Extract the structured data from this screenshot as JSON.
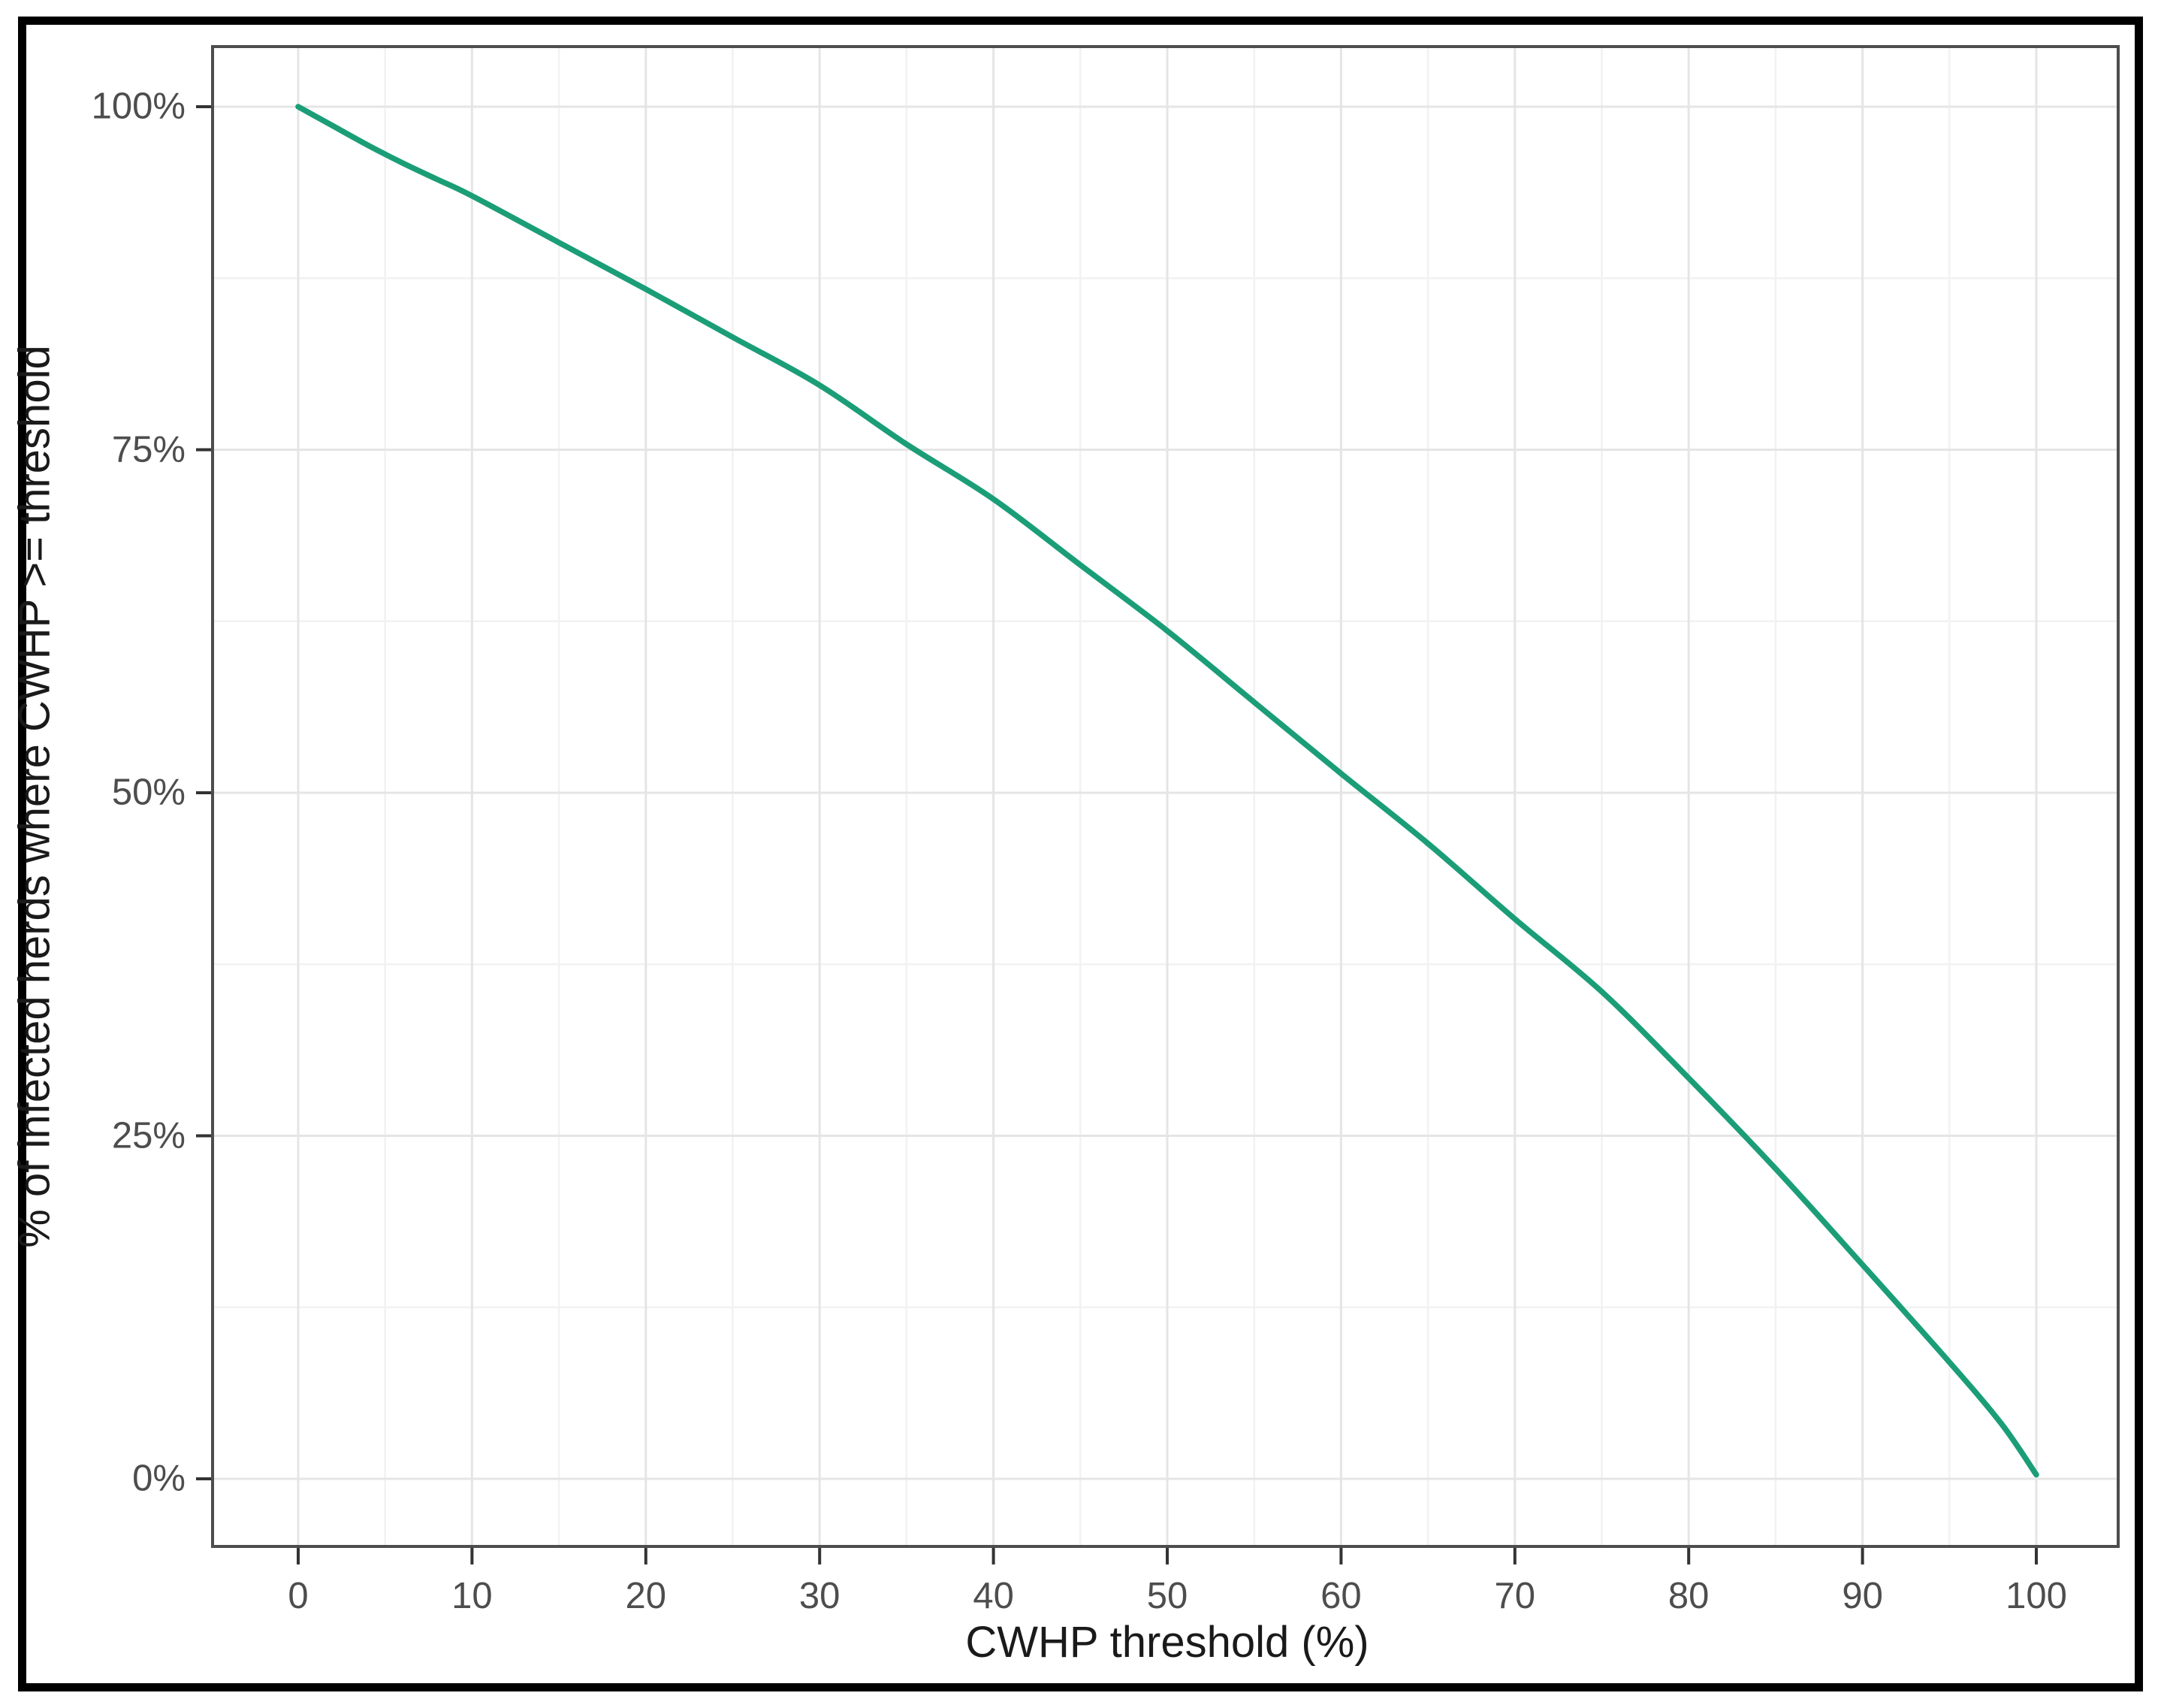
{
  "chart_data": {
    "type": "line",
    "title": "",
    "xlabel": "CWHP threshold (%)",
    "ylabel": "% of infected herds where CWHP >= threshold",
    "x_ticks": [
      0,
      10,
      20,
      30,
      40,
      50,
      60,
      70,
      80,
      90,
      100
    ],
    "y_tick_values": [
      0,
      25,
      50,
      75,
      100
    ],
    "y_tick_labels": [
      "0%",
      "25%",
      "50%",
      "75%",
      "100%"
    ],
    "xlim": [
      0,
      100
    ],
    "ylim": [
      0,
      100
    ],
    "grid": "major and minor horizontal+vertical light gray gridlines on white panel",
    "legend_position": "none",
    "line_color": "#1b9e77",
    "series": [
      {
        "name": "% of infected herds where CWHP >= threshold",
        "points": [
          [
            0,
            100
          ],
          [
            1,
            99.3
          ],
          [
            2,
            98.6
          ],
          [
            4,
            97.2
          ],
          [
            6,
            95.9
          ],
          [
            8,
            94.7
          ],
          [
            10,
            93.5
          ],
          [
            15,
            90.1
          ],
          [
            20,
            86.7
          ],
          [
            25,
            83.2
          ],
          [
            30,
            79.7
          ],
          [
            35,
            75.4
          ],
          [
            40,
            71.4
          ],
          [
            45,
            66.6
          ],
          [
            50,
            61.8
          ],
          [
            55,
            56.6
          ],
          [
            60,
            51.4
          ],
          [
            65,
            46.3
          ],
          [
            70,
            40.8
          ],
          [
            75,
            35.5
          ],
          [
            80,
            29.2
          ],
          [
            85,
            22.6
          ],
          [
            90,
            15.6
          ],
          [
            95,
            8.5
          ],
          [
            98,
            4.0
          ],
          [
            100,
            0.3
          ]
        ]
      }
    ]
  },
  "colors": {
    "curve": "#1b9e77",
    "panel_border": "#4d4d4d",
    "axis_tick": "#333333",
    "tick_label": "#4d4d4d",
    "axis_title": "#1a1a1a",
    "grid_major": "#e5e5e5",
    "grid_minor": "#f2f2f2",
    "outer_frame": "#000000",
    "background": "#ffffff"
  }
}
